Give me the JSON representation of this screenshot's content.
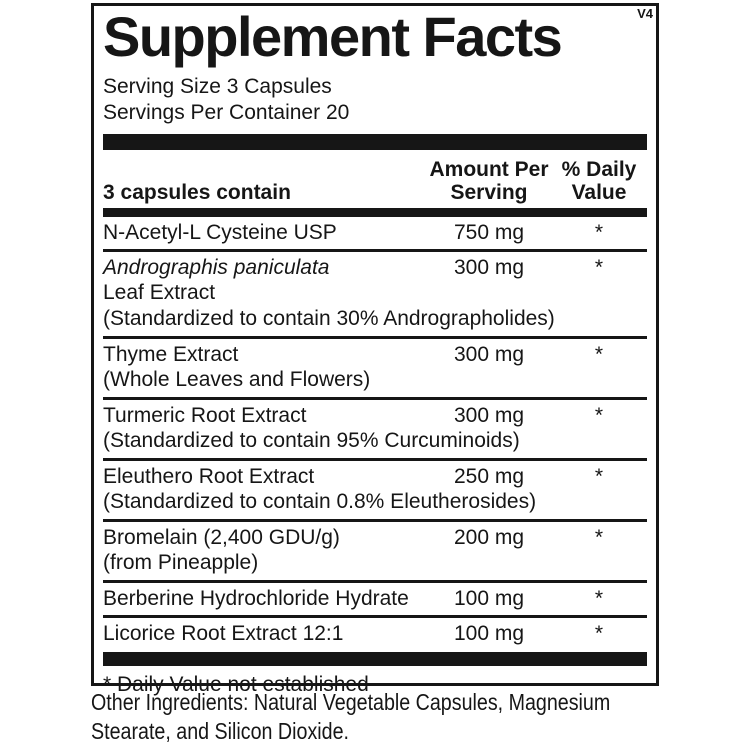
{
  "colors": {
    "ink": "#161616",
    "background": "#ffffff"
  },
  "label": {
    "version_tag": "V4",
    "title": "Supplement Facts",
    "serving_size": "Serving Size 3 Capsules",
    "servings_per_container": "Servings Per Container 20",
    "columns": {
      "ingredient": "3 capsules contain",
      "amount": "Amount Per Serving",
      "daily_value": "% Daily Value"
    },
    "rows": [
      {
        "name": "N-Acetyl-L Cysteine USP",
        "italic": false,
        "details": [],
        "amount": "750 mg",
        "dv": "*"
      },
      {
        "name": "Andrographis paniculata",
        "italic": true,
        "details": [
          "Leaf Extract",
          "(Standardized to contain 30% Andrographolides)"
        ],
        "amount": "300 mg",
        "dv": "*"
      },
      {
        "name": "Thyme Extract",
        "italic": false,
        "details": [
          "(Whole Leaves and Flowers)"
        ],
        "amount": "300 mg",
        "dv": "*"
      },
      {
        "name": "Turmeric Root Extract",
        "italic": false,
        "details": [
          "(Standardized to contain 95% Curcuminoids)"
        ],
        "amount": "300 mg",
        "dv": "*"
      },
      {
        "name": "Eleuthero Root Extract",
        "italic": false,
        "details": [
          "(Standardized to contain 0.8% Eleutherosides)"
        ],
        "amount": "250 mg",
        "dv": "*"
      },
      {
        "name": "Bromelain (2,400 GDU/g)",
        "italic": false,
        "details": [
          "(from Pineapple)"
        ],
        "amount": "200 mg",
        "dv": "*"
      },
      {
        "name": "Berberine Hydrochloride Hydrate",
        "italic": false,
        "details": [],
        "amount": "100 mg",
        "dv": "*"
      },
      {
        "name": "Licorice Root Extract 12:1",
        "italic": false,
        "details": [],
        "amount": "100 mg",
        "dv": "*"
      }
    ],
    "footnote": "* Daily Value not established"
  },
  "other_ingredients": "Other Ingredients: Natural Vegetable Capsules, Magnesium Stearate, and Silicon Dioxide."
}
